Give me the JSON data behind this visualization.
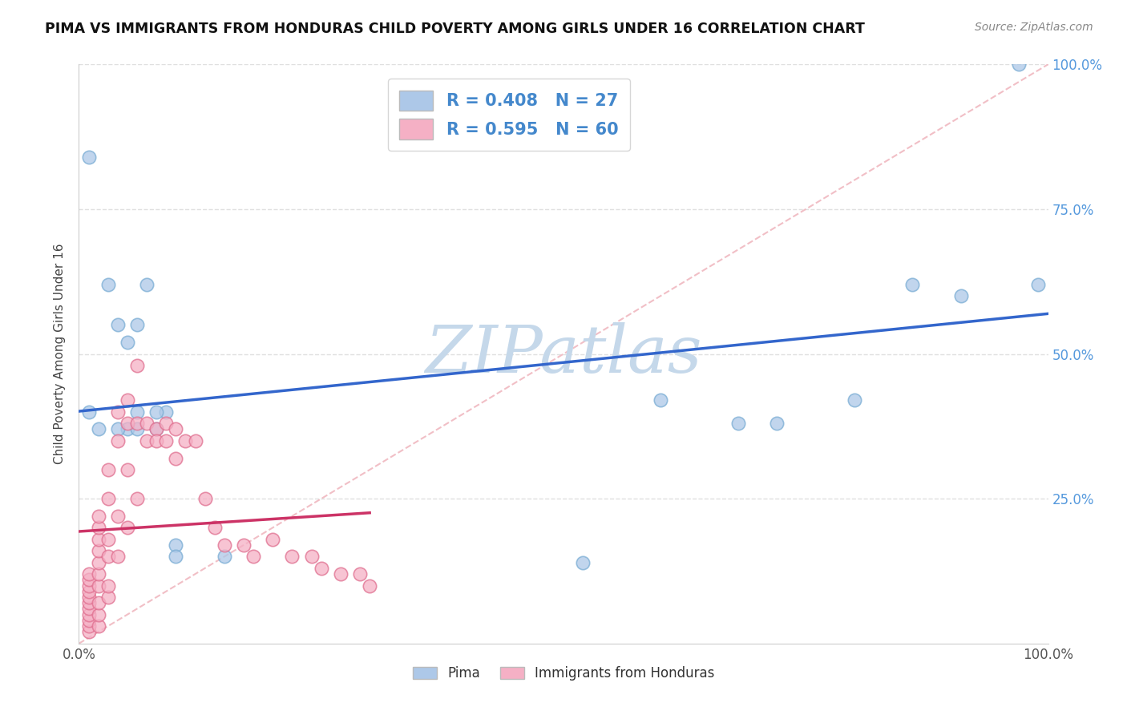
{
  "title": "PIMA VS IMMIGRANTS FROM HONDURAS CHILD POVERTY AMONG GIRLS UNDER 16 CORRELATION CHART",
  "source": "Source: ZipAtlas.com",
  "ylabel": "Child Poverty Among Girls Under 16",
  "xlim": [
    0.0,
    1.0
  ],
  "ylim": [
    0.0,
    1.0
  ],
  "pima_color": "#adc8e8",
  "pima_edge_color": "#7aadd4",
  "honduras_color": "#f5b0c5",
  "honduras_edge_color": "#e07090",
  "pima_line_color": "#3366cc",
  "honduras_line_color": "#cc3366",
  "diag_color": "#f0b8c0",
  "R_pima": 0.408,
  "N_pima": 27,
  "R_honduras": 0.595,
  "N_honduras": 60,
  "watermark_text": "ZIPatlas",
  "watermark_color": "#c5d8ea",
  "grid_color": "#e0e0e0",
  "background": "#ffffff",
  "title_color": "#111111",
  "source_color": "#888888",
  "axis_label_color": "#444444",
  "tick_color_right": "#5599dd",
  "legend_text_color": "#4488cc",
  "legend_border_color": "#cccccc",
  "pima_scatter_x": [
    0.01,
    0.01,
    0.02,
    0.03,
    0.04,
    0.05,
    0.05,
    0.06,
    0.06,
    0.07,
    0.08,
    0.09,
    0.1,
    0.52,
    0.6,
    0.68,
    0.72,
    0.8,
    0.86,
    0.91,
    0.97,
    0.99,
    0.04,
    0.06,
    0.08,
    0.1,
    0.15
  ],
  "pima_scatter_y": [
    0.84,
    0.4,
    0.37,
    0.62,
    0.55,
    0.52,
    0.37,
    0.37,
    0.55,
    0.62,
    0.37,
    0.4,
    0.17,
    0.14,
    0.42,
    0.38,
    0.38,
    0.42,
    0.62,
    0.6,
    1.0,
    0.62,
    0.37,
    0.4,
    0.4,
    0.15,
    0.15
  ],
  "honduras_scatter_x": [
    0.01,
    0.01,
    0.01,
    0.01,
    0.01,
    0.01,
    0.01,
    0.01,
    0.01,
    0.01,
    0.01,
    0.02,
    0.02,
    0.02,
    0.02,
    0.02,
    0.02,
    0.02,
    0.02,
    0.02,
    0.02,
    0.03,
    0.03,
    0.03,
    0.03,
    0.03,
    0.03,
    0.04,
    0.04,
    0.04,
    0.04,
    0.05,
    0.05,
    0.05,
    0.05,
    0.06,
    0.06,
    0.06,
    0.07,
    0.07,
    0.08,
    0.08,
    0.09,
    0.09,
    0.1,
    0.1,
    0.11,
    0.12,
    0.13,
    0.14,
    0.15,
    0.17,
    0.18,
    0.2,
    0.22,
    0.24,
    0.25,
    0.27,
    0.29,
    0.3
  ],
  "honduras_scatter_y": [
    0.02,
    0.03,
    0.04,
    0.05,
    0.06,
    0.07,
    0.08,
    0.09,
    0.1,
    0.11,
    0.12,
    0.03,
    0.05,
    0.07,
    0.1,
    0.12,
    0.14,
    0.16,
    0.18,
    0.2,
    0.22,
    0.08,
    0.1,
    0.15,
    0.18,
    0.25,
    0.3,
    0.15,
    0.22,
    0.35,
    0.4,
    0.2,
    0.38,
    0.42,
    0.3,
    0.25,
    0.38,
    0.48,
    0.38,
    0.35,
    0.37,
    0.35,
    0.35,
    0.38,
    0.32,
    0.37,
    0.35,
    0.35,
    0.25,
    0.2,
    0.17,
    0.17,
    0.15,
    0.18,
    0.15,
    0.15,
    0.13,
    0.12,
    0.12,
    0.1
  ]
}
